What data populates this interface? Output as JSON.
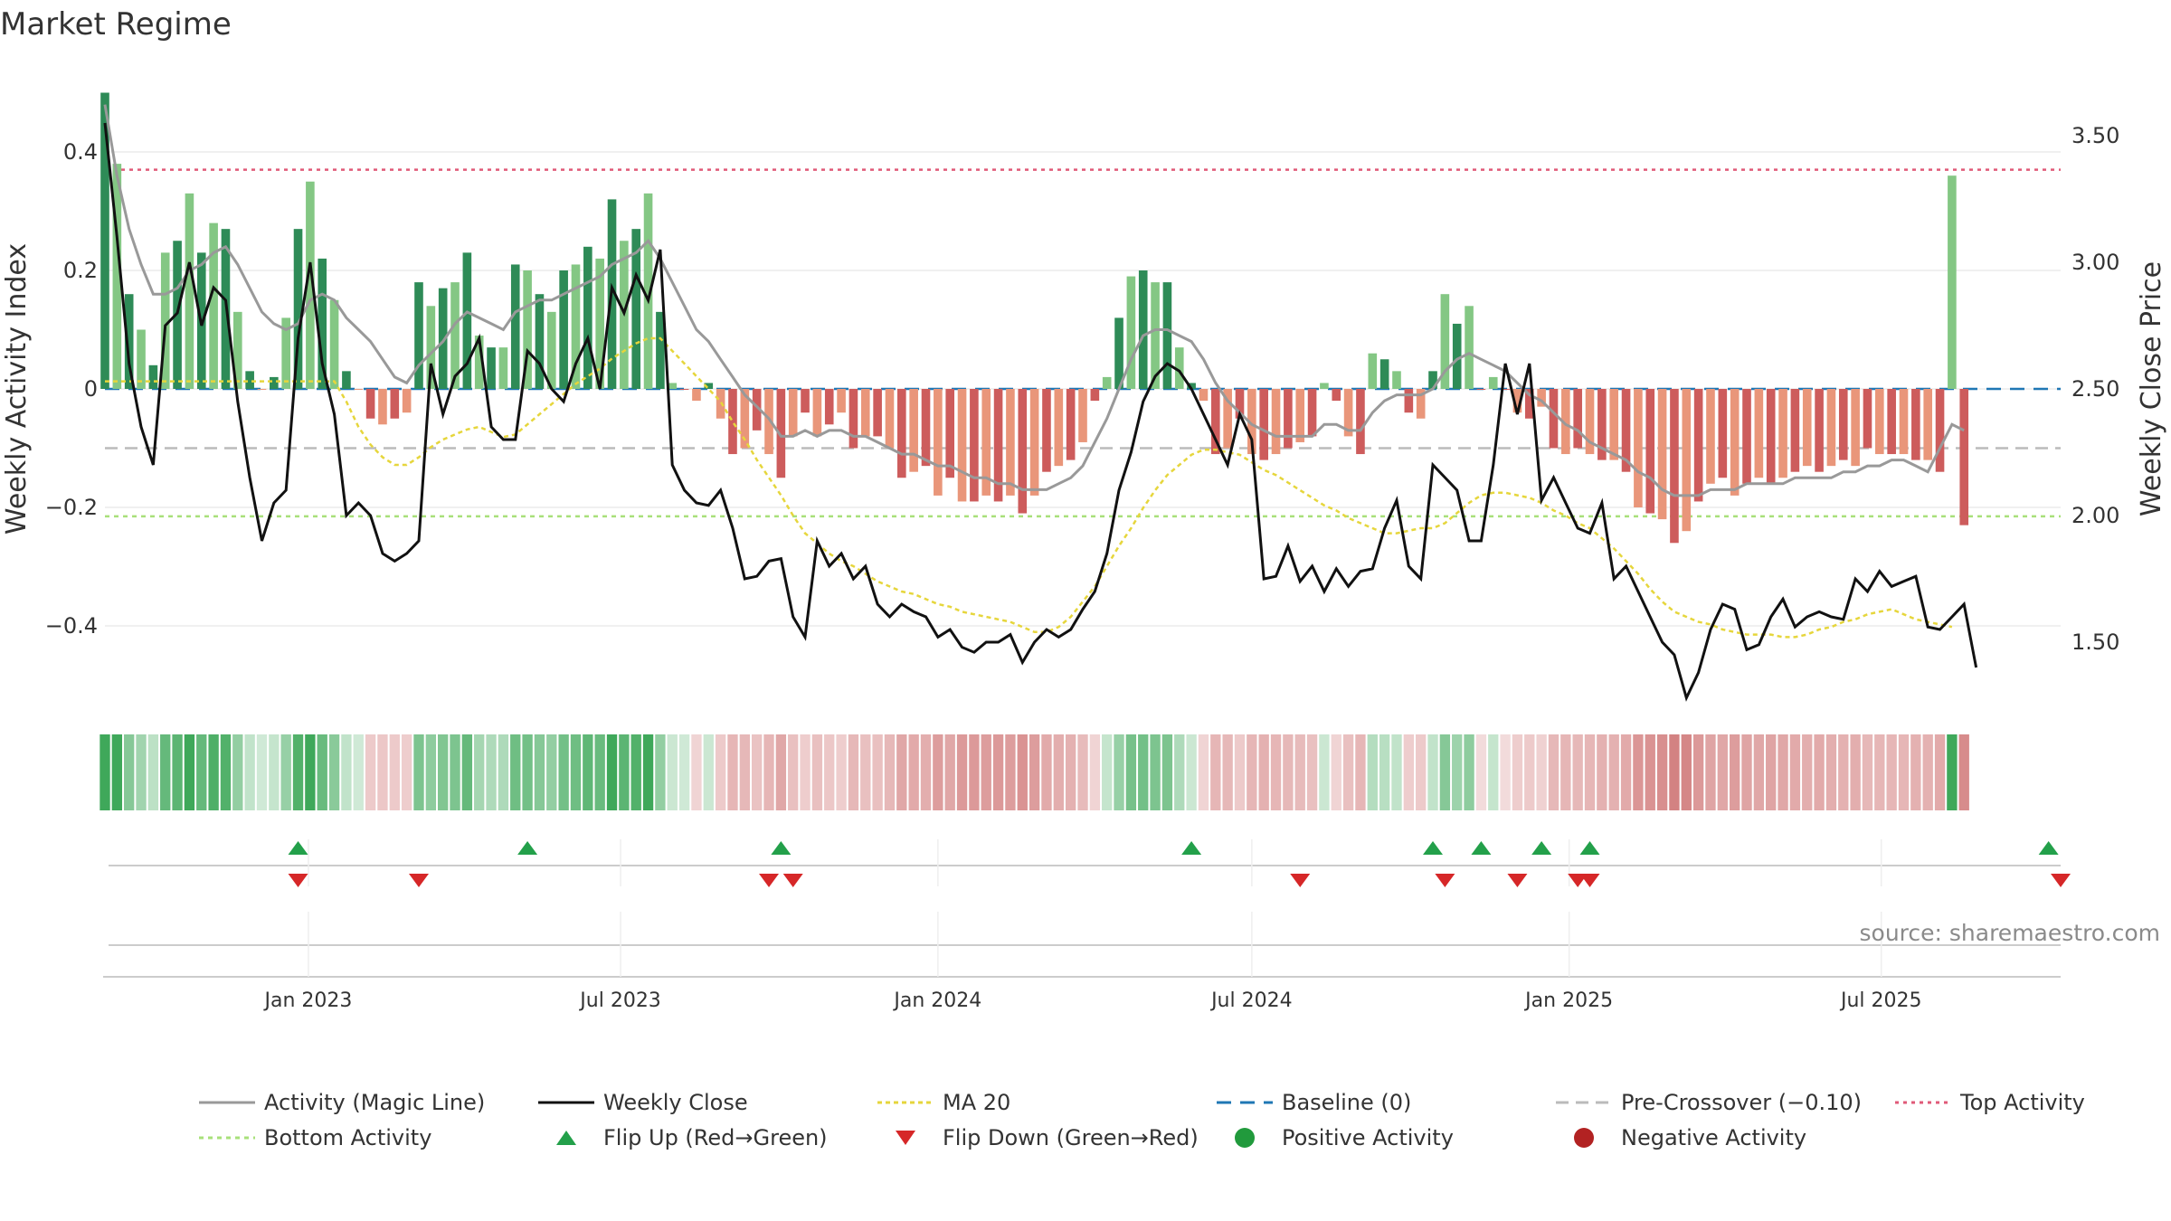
{
  "chart_data": {
    "type": "bar",
    "title": "Market Regime",
    "ylabel_left": "Weekly Activity Index",
    "ylabel_right": "Weekly Close Price",
    "source": "source: sharemaestro.com",
    "x_start": "2022-09-05",
    "x_end": "2025-10-13",
    "x_ticks": [
      {
        "date": "2023-01-01",
        "label": "Jan 2023"
      },
      {
        "date": "2023-07-01",
        "label": "Jul 2023"
      },
      {
        "date": "2024-01-01",
        "label": "Jan 2024"
      },
      {
        "date": "2024-07-01",
        "label": "Jul 2024"
      },
      {
        "date": "2025-01-01",
        "label": "Jan 2025"
      },
      {
        "date": "2025-07-01",
        "label": "Jul 2025"
      }
    ],
    "ylim_left": [
      -0.5,
      0.5
    ],
    "y_ticks_left": [
      {
        "value": 0.4,
        "label": "0.4"
      },
      {
        "value": 0.2,
        "label": "0.2"
      },
      {
        "value": 0,
        "label": "0"
      },
      {
        "value": -0.2,
        "label": "−0.2"
      },
      {
        "value": -0.4,
        "label": "−0.4"
      }
    ],
    "ylim_right": [
      1.2,
      3.6
    ],
    "y_ticks_right": [
      {
        "value": 3.5,
        "label": "3.50"
      },
      {
        "value": 3.0,
        "label": "3.00"
      },
      {
        "value": 2.5,
        "label": "2.50"
      },
      {
        "value": 2.0,
        "label": "2.00"
      },
      {
        "value": 1.5,
        "label": "1.50"
      }
    ],
    "reference_lines": {
      "top_activity": 0.37,
      "pre_crossover": -0.1,
      "bottom_activity": -0.215,
      "baseline": 0
    },
    "activity": [
      0.5,
      0.38,
      0.16,
      0.1,
      0.04,
      0.23,
      0.25,
      0.33,
      0.23,
      0.28,
      0.27,
      0.13,
      0.03,
      0,
      0.02,
      0.12,
      0.27,
      0.35,
      0.22,
      0.15,
      0.03,
      0,
      -0.05,
      -0.06,
      -0.05,
      -0.04,
      0.18,
      0.14,
      0.17,
      0.18,
      0.23,
      0.09,
      0.07,
      0.07,
      0.21,
      0.2,
      0.16,
      0.13,
      0.2,
      0.21,
      0.24,
      0.22,
      0.32,
      0.25,
      0.27,
      0.33,
      0.13,
      0.01,
      0,
      -0.02,
      0.01,
      -0.05,
      -0.11,
      -0.1,
      -0.07,
      -0.11,
      -0.15,
      -0.08,
      -0.04,
      -0.08,
      -0.06,
      -0.04,
      -0.1,
      -0.08,
      -0.08,
      -0.1,
      -0.15,
      -0.14,
      -0.13,
      -0.18,
      -0.15,
      -0.19,
      -0.19,
      -0.18,
      -0.19,
      -0.18,
      -0.21,
      -0.18,
      -0.14,
      -0.13,
      -0.12,
      -0.09,
      -0.02,
      0.02,
      0.12,
      0.19,
      0.2,
      0.18,
      0.18,
      0.07,
      0.01,
      -0.02,
      -0.11,
      -0.1,
      -0.05,
      -0.11,
      -0.12,
      -0.11,
      -0.1,
      -0.09,
      -0.08,
      0.01,
      -0.02,
      -0.08,
      -0.11,
      0.06,
      0.05,
      0.03,
      -0.04,
      -0.05,
      0.03,
      0.16,
      0.11,
      0.14,
      0,
      0.02,
      0,
      -0.04,
      -0.05,
      -0.03,
      -0.1,
      -0.11,
      -0.1,
      -0.11,
      -0.12,
      -0.12,
      -0.14,
      -0.2,
      -0.21,
      -0.22,
      -0.26,
      -0.24,
      -0.19,
      -0.16,
      -0.15,
      -0.18,
      -0.16,
      -0.15,
      -0.16,
      -0.15,
      -0.14,
      -0.13,
      -0.14,
      -0.13,
      -0.12,
      -0.13,
      -0.1,
      -0.11,
      -0.11,
      -0.11,
      -0.12,
      -0.12,
      -0.14,
      0.36,
      -0.23
    ],
    "activity_magic_line": [
      0.48,
      0.36,
      0.27,
      0.21,
      0.16,
      0.16,
      0.17,
      0.2,
      0.21,
      0.23,
      0.24,
      0.21,
      0.17,
      0.13,
      0.11,
      0.1,
      0.11,
      0.15,
      0.16,
      0.15,
      0.12,
      0.1,
      0.08,
      0.05,
      0.02,
      0.01,
      0.04,
      0.06,
      0.08,
      0.11,
      0.13,
      0.12,
      0.11,
      0.1,
      0.13,
      0.14,
      0.15,
      0.15,
      0.16,
      0.17,
      0.18,
      0.19,
      0.21,
      0.22,
      0.23,
      0.25,
      0.22,
      0.18,
      0.14,
      0.1,
      0.08,
      0.05,
      0.02,
      -0.01,
      -0.03,
      -0.05,
      -0.08,
      -0.08,
      -0.07,
      -0.08,
      -0.07,
      -0.07,
      -0.08,
      -0.08,
      -0.09,
      -0.1,
      -0.11,
      -0.11,
      -0.12,
      -0.13,
      -0.13,
      -0.14,
      -0.15,
      -0.15,
      -0.16,
      -0.16,
      -0.17,
      -0.17,
      -0.17,
      -0.16,
      -0.15,
      -0.13,
      -0.09,
      -0.05,
      0.0,
      0.05,
      0.09,
      0.1,
      0.1,
      0.09,
      0.08,
      0.05,
      0.01,
      -0.02,
      -0.04,
      -0.06,
      -0.07,
      -0.08,
      -0.08,
      -0.08,
      -0.08,
      -0.06,
      -0.06,
      -0.07,
      -0.07,
      -0.04,
      -0.02,
      -0.01,
      -0.01,
      -0.01,
      0.0,
      0.03,
      0.05,
      0.06,
      0.05,
      0.04,
      0.03,
      0.01,
      -0.01,
      -0.02,
      -0.04,
      -0.06,
      -0.07,
      -0.09,
      -0.1,
      -0.11,
      -0.12,
      -0.14,
      -0.15,
      -0.17,
      -0.18,
      -0.18,
      -0.18,
      -0.17,
      -0.17,
      -0.17,
      -0.16,
      -0.16,
      -0.16,
      -0.16,
      -0.15,
      -0.15,
      -0.15,
      -0.15,
      -0.14,
      -0.14,
      -0.13,
      -0.13,
      -0.12,
      -0.12,
      -0.13,
      -0.14,
      -0.1,
      -0.06,
      -0.07
    ],
    "weekly_close": [
      3.55,
      3.1,
      2.6,
      2.35,
      2.2,
      2.75,
      2.8,
      3.0,
      2.75,
      2.9,
      2.85,
      2.45,
      2.15,
      1.9,
      2.05,
      2.1,
      2.7,
      3.0,
      2.6,
      2.4,
      2.0,
      2.05,
      2.0,
      1.85,
      1.82,
      1.85,
      1.9,
      2.6,
      2.4,
      2.55,
      2.6,
      2.7,
      2.35,
      2.3,
      2.3,
      2.65,
      2.6,
      2.5,
      2.45,
      2.6,
      2.7,
      2.5,
      2.9,
      2.8,
      2.95,
      2.85,
      3.05,
      2.2,
      2.1,
      2.05,
      2.04,
      2.1,
      1.95,
      1.75,
      1.76,
      1.82,
      1.83,
      1.6,
      1.52,
      1.9,
      1.8,
      1.85,
      1.75,
      1.8,
      1.65,
      1.6,
      1.65,
      1.62,
      1.6,
      1.52,
      1.55,
      1.48,
      1.46,
      1.5,
      1.5,
      1.53,
      1.42,
      1.5,
      1.55,
      1.52,
      1.55,
      1.63,
      1.7,
      1.85,
      2.1,
      2.25,
      2.45,
      2.55,
      2.6,
      2.57,
      2.5,
      2.4,
      2.3,
      2.2,
      2.4,
      2.3,
      1.75,
      1.76,
      1.88,
      1.74,
      1.8,
      1.7,
      1.79,
      1.72,
      1.78,
      1.79,
      1.95,
      2.06,
      1.8,
      1.75,
      2.2,
      2.15,
      2.1,
      1.9,
      1.9,
      2.2,
      2.6,
      2.4,
      2.6,
      2.06,
      2.15,
      2.05,
      1.95,
      1.93,
      2.05,
      1.75,
      1.8,
      1.7,
      1.6,
      1.5,
      1.45,
      1.28,
      1.38,
      1.55,
      1.65,
      1.63,
      1.47,
      1.49,
      1.6,
      1.67,
      1.56,
      1.6,
      1.62,
      1.6,
      1.59,
      1.75,
      1.7,
      1.78,
      1.72,
      1.74,
      1.76,
      1.56,
      1.55,
      1.6,
      1.65,
      1.4
    ],
    "ma_20": [
      2.53,
      2.53,
      2.53,
      2.53,
      2.53,
      2.53,
      2.53,
      2.53,
      2.53,
      2.53,
      2.53,
      2.53,
      2.53,
      2.53,
      2.53,
      2.53,
      2.53,
      2.53,
      2.53,
      2.53,
      2.45,
      2.35,
      2.28,
      2.23,
      2.2,
      2.2,
      2.23,
      2.27,
      2.3,
      2.32,
      2.34,
      2.35,
      2.33,
      2.31,
      2.32,
      2.36,
      2.4,
      2.44,
      2.48,
      2.52,
      2.55,
      2.58,
      2.62,
      2.65,
      2.68,
      2.7,
      2.7,
      2.65,
      2.6,
      2.55,
      2.5,
      2.45,
      2.37,
      2.3,
      2.22,
      2.15,
      2.08,
      2.0,
      1.93,
      1.89,
      1.85,
      1.82,
      1.8,
      1.77,
      1.74,
      1.72,
      1.7,
      1.69,
      1.67,
      1.65,
      1.64,
      1.62,
      1.61,
      1.6,
      1.59,
      1.58,
      1.56,
      1.54,
      1.54,
      1.56,
      1.6,
      1.66,
      1.72,
      1.8,
      1.88,
      1.95,
      2.03,
      2.1,
      2.16,
      2.2,
      2.24,
      2.26,
      2.26,
      2.25,
      2.24,
      2.21,
      2.18,
      2.16,
      2.13,
      2.1,
      2.07,
      2.04,
      2.02,
      1.99,
      1.97,
      1.95,
      1.93,
      1.93,
      1.94,
      1.95,
      1.95,
      1.97,
      2.01,
      2.05,
      2.08,
      2.09,
      2.09,
      2.08,
      2.07,
      2.05,
      2.02,
      2.0,
      1.97,
      1.95,
      1.91,
      1.87,
      1.82,
      1.77,
      1.71,
      1.66,
      1.62,
      1.6,
      1.58,
      1.57,
      1.55,
      1.54,
      1.53,
      1.53,
      1.53,
      1.52,
      1.52,
      1.53,
      1.55,
      1.56,
      1.58,
      1.59,
      1.61,
      1.62,
      1.63,
      1.61,
      1.59,
      1.58,
      1.57,
      1.56
    ],
    "flips_up": [
      "2022-12-26",
      "2023-05-08",
      "2023-10-02",
      "2024-05-27",
      "2024-10-14",
      "2024-11-11",
      "2024-12-16",
      "2025-01-13",
      "2025-10-06"
    ],
    "flips_down": [
      "2022-12-26",
      "2023-03-06",
      "2023-09-25",
      "2023-10-09",
      "2024-07-29",
      "2024-10-21",
      "2024-12-02",
      "2025-01-06",
      "2025-01-13",
      "2025-10-13"
    ]
  },
  "colors": {
    "strong_green": "#2e8b57",
    "light_green": "#84c784",
    "strong_red": "#cd5c5c",
    "light_red": "#e9967a",
    "magic_line": "#999999",
    "weekly_close": "#111111",
    "ma20": "#e6d63c",
    "baseline": "#1f77b4",
    "pre_crossover": "#bbbbbb",
    "top_activity": "#e05a78",
    "bottom_activity": "#a8e07a",
    "flip_up": "#23a04a",
    "flip_down": "#d62728",
    "positive_dot": "#219a3c",
    "negative_dot": "#b22222"
  },
  "legend": {
    "magic_line": "Activity (Magic Line)",
    "weekly_close": "Weekly Close",
    "ma20": "MA 20",
    "baseline": "Baseline (0)",
    "pre_crossover": "Pre-Crossover (−0.10)",
    "top_activity": "Top Activity",
    "bottom_activity": "Bottom Activity",
    "flip_up": "Flip Up (Red→Green)",
    "flip_down": "Flip Down (Green→Red)",
    "positive": "Positive Activity",
    "negative": "Negative Activity"
  }
}
